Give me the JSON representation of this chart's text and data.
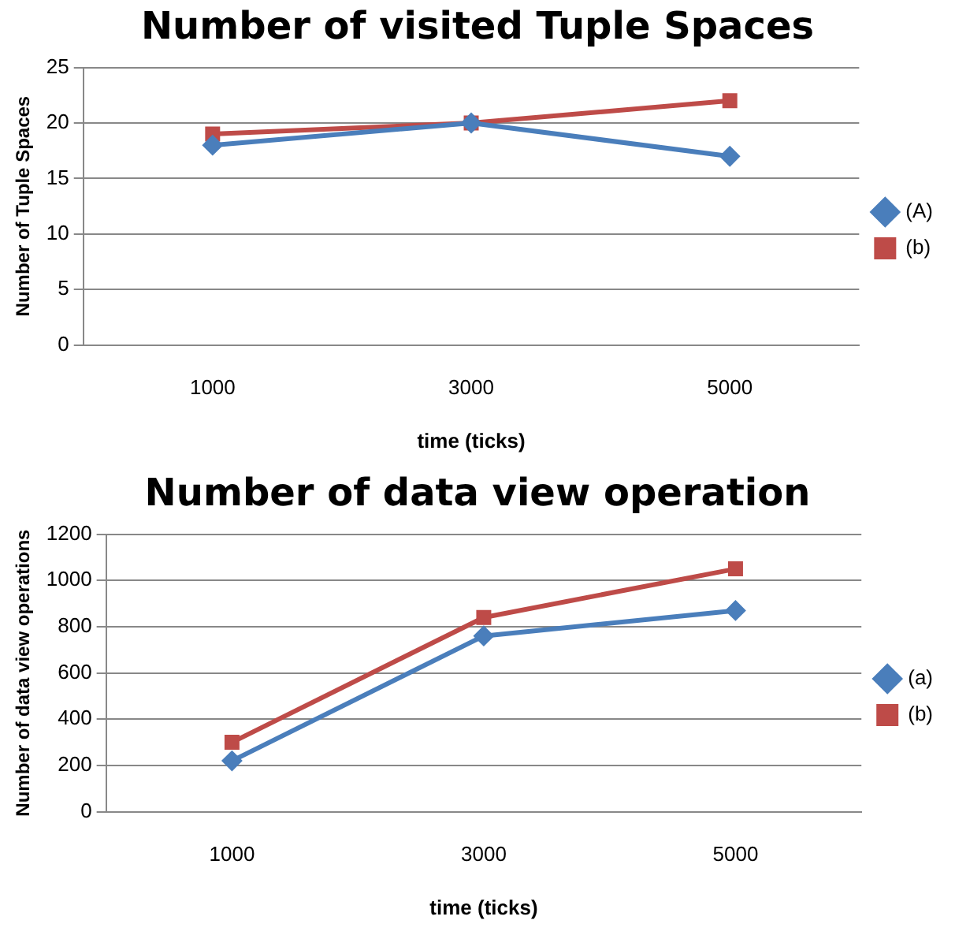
{
  "chart_data": [
    {
      "type": "line",
      "title": "Number of visited Tuple Spaces",
      "xlabel": "time (ticks)",
      "ylabel": "Number of Tuple Spaces",
      "categories": [
        "1000",
        "3000",
        "5000"
      ],
      "series": [
        {
          "name": "(A)",
          "color": "#4a7ebb",
          "marker": "diamond",
          "values": [
            18,
            20,
            17
          ]
        },
        {
          "name": "(b)",
          "color": "#be4b48",
          "marker": "square",
          "values": [
            19,
            20,
            22
          ]
        }
      ],
      "ylim": [
        0,
        25
      ],
      "yticks": [
        0,
        5,
        10,
        15,
        20,
        25
      ],
      "grid": "y",
      "legend": "right",
      "line_style": "solid"
    },
    {
      "type": "line",
      "title": "Number of data view operation",
      "xlabel": "time (ticks)",
      "ylabel": "Number of data view operations",
      "categories": [
        "1000",
        "3000",
        "5000"
      ],
      "series": [
        {
          "name": "(a)",
          "color": "#4a7ebb",
          "marker": "diamond",
          "values": [
            220,
            760,
            870
          ]
        },
        {
          "name": "(b)",
          "color": "#be4b48",
          "marker": "square",
          "values": [
            300,
            840,
            1050
          ]
        }
      ],
      "ylim": [
        0,
        1200
      ],
      "yticks": [
        0,
        200,
        400,
        600,
        800,
        1000,
        1200
      ],
      "grid": "y",
      "legend": "right",
      "line_style": "solid"
    }
  ]
}
